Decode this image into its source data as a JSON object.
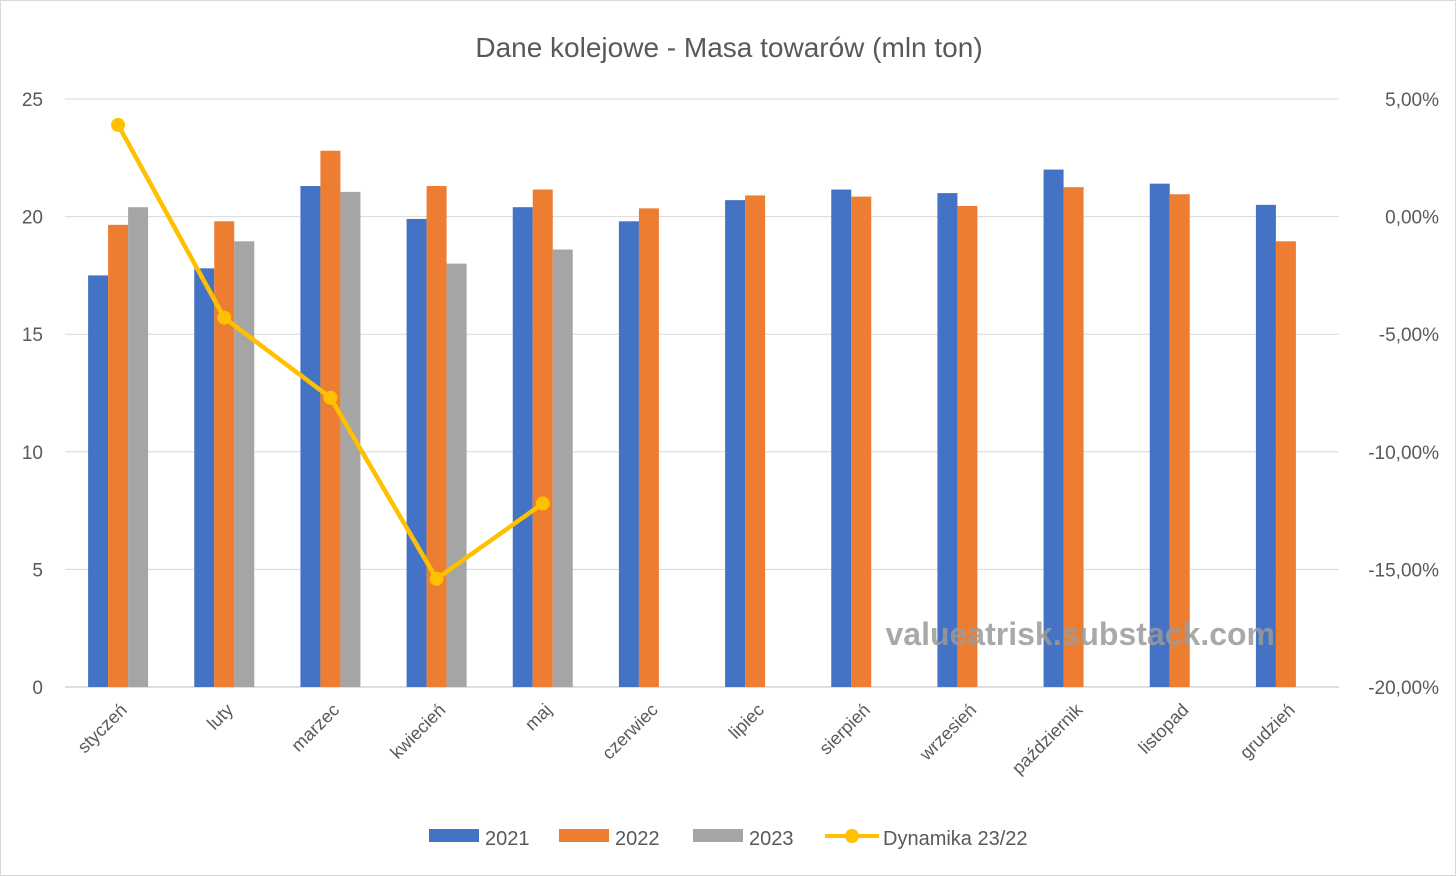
{
  "chart_data": {
    "type": "bar",
    "title": "Dane kolejowe - Masa towarów (mln ton)",
    "categories": [
      "styczeń",
      "luty",
      "marzec",
      "kwiecień",
      "maj",
      "czerwiec",
      "lipiec",
      "sierpień",
      "wrzesień",
      "październik",
      "listopad",
      "grudzień"
    ],
    "series": [
      {
        "name": "2021",
        "type": "bar",
        "axis": "left",
        "color": "#4472c4",
        "values": [
          17.5,
          17.8,
          21.3,
          19.9,
          20.4,
          19.8,
          20.7,
          21.15,
          21.0,
          22.0,
          21.4,
          20.5
        ]
      },
      {
        "name": "2022",
        "type": "bar",
        "axis": "left",
        "color": "#ed7d31",
        "values": [
          19.65,
          19.8,
          22.8,
          21.3,
          21.15,
          20.35,
          20.9,
          20.85,
          20.45,
          21.25,
          20.95,
          18.95
        ]
      },
      {
        "name": "2023",
        "type": "bar",
        "axis": "left",
        "color": "#a5a5a5",
        "values": [
          20.4,
          18.95,
          21.05,
          18.0,
          18.6,
          null,
          null,
          null,
          null,
          null,
          null,
          null
        ]
      },
      {
        "name": "Dynamika 23/22",
        "type": "line",
        "axis": "right",
        "color": "#ffc000",
        "values": [
          3.9,
          -4.3,
          -7.7,
          -15.4,
          -12.2,
          null,
          null,
          null,
          null,
          null,
          null,
          null
        ]
      }
    ],
    "y_left": {
      "min": 0,
      "max": 25,
      "ticks": [
        "0",
        "5",
        "10",
        "15",
        "20",
        "25"
      ]
    },
    "y_right": {
      "min": -20,
      "max": 5,
      "ticks": [
        "-20,00%",
        "-15,00%",
        "-10,00%",
        "-5,00%",
        "0,00%",
        "5,00%"
      ]
    },
    "grid": true,
    "legend_position": "bottom",
    "watermark": "valueatrisk.substack.com"
  }
}
